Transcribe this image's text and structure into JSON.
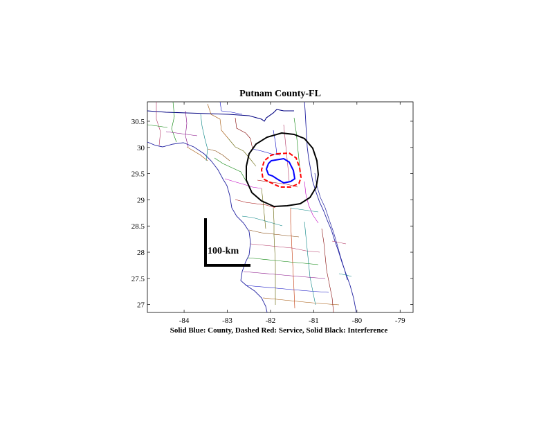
{
  "title": "Putnam County-FL",
  "caption": "Solid Blue: County, Dashed Red: Service, Solid Black: Interference",
  "scale_label": "100-km",
  "axes": {
    "x_ticks": [
      -84,
      -83,
      -82,
      -81,
      -80,
      -79
    ],
    "y_ticks": [
      30.5,
      30,
      29.5,
      29,
      28.5,
      28,
      27.5,
      27
    ],
    "xlim": [
      -84.85,
      -78.7
    ],
    "ylim": [
      26.85,
      30.87
    ]
  },
  "colors": {
    "county": "#0000ff",
    "service": "#ff0000",
    "interference": "#000000"
  }
}
